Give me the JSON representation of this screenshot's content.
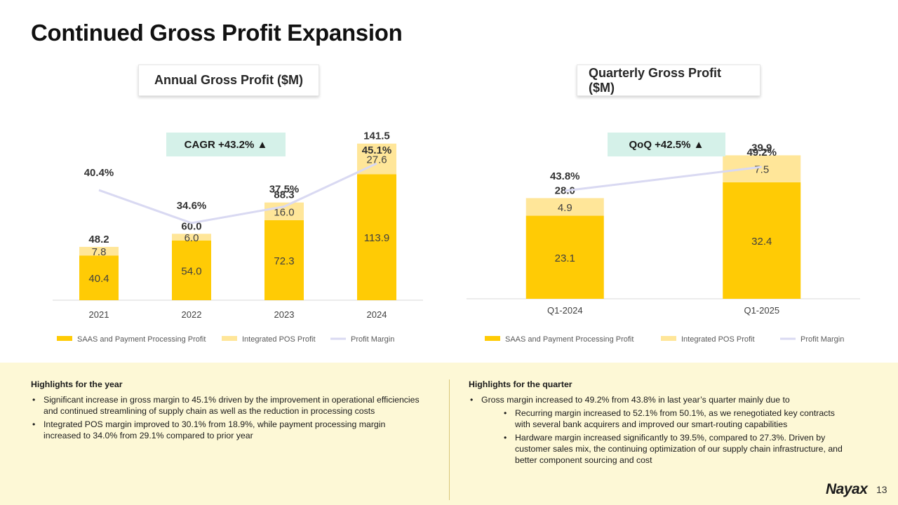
{
  "title": "Continued Gross Profit Expansion",
  "colors": {
    "saas": "#ffcb05",
    "pos": "#ffe699",
    "margin": "#d9d9f2",
    "badge": "#d5f1e9",
    "panel": "#fdf8d6"
  },
  "annual": {
    "heading": "Annual Gross Profit ($M)",
    "badge": "CAGR +43.2% ▲"
  },
  "quarterly": {
    "heading": "Quarterly Gross Profit ($M)",
    "badge": "QoQ +42.5% ▲"
  },
  "chart_data": [
    {
      "type": "bar",
      "stacked": true,
      "title": "Annual Gross Profit ($M)",
      "categories": [
        "2021",
        "2022",
        "2023",
        "2024"
      ],
      "series": [
        {
          "name": "SAAS and Payment Processing Profit",
          "values": [
            40.4,
            54.0,
            72.3,
            113.9
          ],
          "color": "#ffcb05"
        },
        {
          "name": "Integrated POS Profit",
          "values": [
            7.8,
            6.0,
            16.0,
            27.6
          ],
          "color": "#ffe699"
        }
      ],
      "totals": [
        "48.2",
        "60.0",
        "88.3",
        "141.5"
      ],
      "line": {
        "name": "Profit Margin",
        "values": [
          40.4,
          34.6,
          37.5,
          45.1
        ],
        "labels": [
          "40.4%",
          "34.6%",
          "37.5%",
          "45.1%"
        ],
        "color": "#d9d9f2"
      },
      "ylim": [
        0,
        180
      ],
      "legend": "bottom"
    },
    {
      "type": "bar",
      "stacked": true,
      "title": "Quarterly Gross Profit ($M)",
      "categories": [
        "Q1-2024",
        "Q1-2025"
      ],
      "series": [
        {
          "name": "SAAS and Payment Processing Profit",
          "values": [
            23.1,
            32.4
          ],
          "color": "#ffcb05"
        },
        {
          "name": "Integrated POS Profit",
          "values": [
            4.9,
            7.5
          ],
          "color": "#ffe699"
        }
      ],
      "totals": [
        "28.0",
        "39.9"
      ],
      "line": {
        "name": "Profit Margin",
        "values": [
          43.8,
          49.2
        ],
        "labels": [
          "43.8%",
          "49.2%"
        ],
        "color": "#d9d9f2"
      },
      "ylim": [
        0,
        55
      ],
      "legend": "bottom"
    }
  ],
  "highlights_year": {
    "title": "Highlights for the year",
    "items": [
      "Significant increase in gross margin to 45.1% driven by the improvement in operational efficiencies and continued streamlining of supply chain as well as the reduction in processing costs",
      "Integrated POS margin improved to 30.1% from 18.9%, while payment processing margin increased to 34.0% from 29.1% compared to prior year"
    ]
  },
  "highlights_quarter": {
    "title": "Highlights for the quarter",
    "main": "Gross margin increased to 49.2% from 43.8% in last year’s quarter mainly due to",
    "sub": [
      "Recurring margin increased to 52.1% from 50.1%, as we renegotiated key contracts with several bank acquirers and improved our smart-routing capabilities",
      "Hardware margin increased significantly to 39.5%, compared to 27.3%. Driven by customer sales mix, the continuing optimization of our supply chain infrastructure, and better component sourcing and cost"
    ]
  },
  "logo": "Nayax",
  "page_number": "13"
}
